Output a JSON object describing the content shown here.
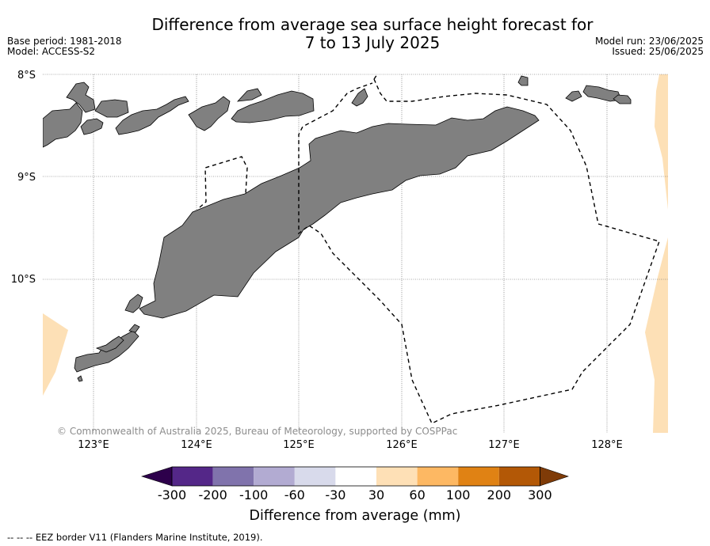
{
  "title": {
    "line1": "Difference from average sea surface height forecast for",
    "line2": "7 to 13 July 2025"
  },
  "meta_left": {
    "base_period": "Base period: 1981-2018",
    "model": "Model: ACCESS-S2"
  },
  "meta_right": {
    "model_run": "Model run: 23/06/2025",
    "issued": "Issued: 25/06/2025"
  },
  "map": {
    "lat_labels": [
      "8°S",
      "9°S",
      "10°S"
    ],
    "lon_labels": [
      "123°E",
      "124°E",
      "125°E",
      "126°E",
      "127°E",
      "128°E"
    ],
    "copyright": "© Commonwealth of Australia 2025, Bureau of Meteorology, supported by COSPPac",
    "land_color": "#808080",
    "anomaly_color_visible": "#fde0b6"
  },
  "colorbar": {
    "title": "Difference from average (mm)",
    "ticks": [
      "-300",
      "-200",
      "-100",
      "-60",
      "-30",
      "30",
      "60",
      "100",
      "200",
      "300"
    ],
    "colors": [
      "#2d004b",
      "#542788",
      "#8073ac",
      "#b2abd2",
      "#d8daeb",
      "#ffffff",
      "#fee0b6",
      "#fdb863",
      "#e08214",
      "#b35806",
      "#7f3b08"
    ]
  },
  "footnote": "--  --  -- EEZ border V11 (Flanders Marine Institute, 2019)."
}
